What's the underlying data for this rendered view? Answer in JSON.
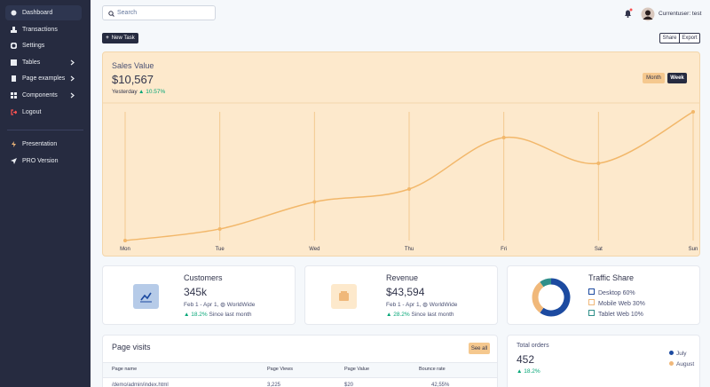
{
  "sidebar": {
    "items": [
      {
        "label": "Dashboard"
      },
      {
        "label": "Transactions"
      },
      {
        "label": "Settings"
      },
      {
        "label": "Tables"
      },
      {
        "label": "Page examples"
      },
      {
        "label": "Components"
      },
      {
        "label": "Logout"
      },
      {
        "label": "Presentation"
      },
      {
        "label": "PRO Version"
      }
    ]
  },
  "topbar": {
    "search_placeholder": "Search",
    "user": "Currentuser: test"
  },
  "toolbar": {
    "new_task": "New Task",
    "share": "Share",
    "export": "Export"
  },
  "sales_chart": {
    "title": "Sales Value",
    "value": "$10,567",
    "period": "Yesterday",
    "change": "10.57%",
    "buttons": [
      "Month",
      "Week"
    ],
    "categories": [
      "Mon",
      "Tue",
      "Wed",
      "Thu",
      "Fri",
      "Sat",
      "Sun"
    ],
    "values": [
      0,
      9,
      30,
      40,
      80,
      60,
      100
    ],
    "ylim": [
      0,
      100
    ],
    "color": "#f2b76a"
  },
  "cards": [
    {
      "title": "Customers",
      "value": "345k",
      "range": "Feb 1 - Apr 1,",
      "region": "WorldWide",
      "change": "18.2%",
      "note": "Since last month"
    },
    {
      "title": "Revenue",
      "value": "$43,594",
      "range": "Feb 1 - Apr 1,",
      "region": "WorldWide",
      "change": "28.2%",
      "note": "Since last month"
    }
  ],
  "traffic_share": {
    "title": "Traffic Share",
    "items": [
      {
        "name": "Desktop",
        "value": 60,
        "value_label": "60%",
        "color": "#1c4aa0"
      },
      {
        "name": "Mobile Web",
        "value": 30,
        "value_label": "30%",
        "color": "#f0b87a"
      },
      {
        "name": "Tablet Web",
        "value": 10,
        "value_label": "10%",
        "color": "#2f8f8a"
      }
    ]
  },
  "page_visits": {
    "title": "Page visits",
    "see_all": "See all",
    "columns": [
      "Page name",
      "Page Views",
      "Page Value",
      "Bounce rate"
    ],
    "rows": [
      [
        "/demo/admin/index.html",
        "3,225",
        "$20",
        "42,55%"
      ]
    ]
  },
  "total_orders": {
    "title": "Total orders",
    "value": "452",
    "change": "18.2%",
    "legend": [
      {
        "name": "July",
        "color": "#1c4aa0"
      },
      {
        "name": "August",
        "color": "#f0b87a"
      }
    ]
  }
}
